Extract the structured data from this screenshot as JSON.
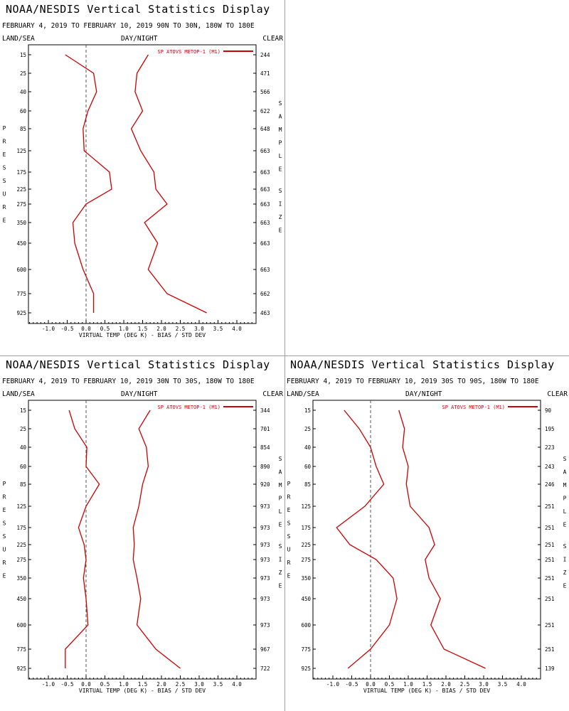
{
  "common": {
    "title": "NOAA/NESDIS Vertical Statistics Display",
    "header_left": "LAND/SEA",
    "header_mid": "DAY/NIGHT",
    "header_right": "CLEAR",
    "left_axis_label": "PRESSURE",
    "right_axis_label": "SAMPLE SIZE",
    "x_axis_label": "VIRTUAL TEMP (DEG K) - BIAS / STD DEV",
    "legend": "SP ATOVS METOP-1 (M1)",
    "x_ticks": [
      "-1.0",
      "-0.5",
      "0.0",
      "0.5",
      "1.0",
      "1.5",
      "2.0",
      "2.5",
      "3.0",
      "3.5",
      "4.0"
    ],
    "pressure_levels": [
      "15",
      "25",
      "40",
      "60",
      "85",
      "125",
      "175",
      "225",
      "275",
      "350",
      "450",
      "600",
      "775",
      "925"
    ],
    "colors": {
      "line": "#cc0000",
      "axis": "#000000",
      "zero_line": "#555555"
    }
  },
  "chart_data": [
    {
      "type": "line",
      "subtitle": "FEBRUARY 4, 2019 TO FEBRUARY 10, 2019 90N TO 30N, 180W TO 180E",
      "xlim": [
        -1.5,
        4.5
      ],
      "y": [
        "15",
        "25",
        "40",
        "60",
        "85",
        "125",
        "175",
        "225",
        "275",
        "350",
        "450",
        "600",
        "775",
        "925"
      ],
      "sample_size": [
        "244",
        "471",
        "566",
        "622",
        "648",
        "663",
        "663",
        "663",
        "663",
        "663",
        "663",
        "663",
        "662",
        "463"
      ],
      "series": [
        {
          "role": "bias",
          "values": [
            -0.55,
            0.2,
            0.28,
            0.05,
            -0.08,
            -0.05,
            0.62,
            0.68,
            0.0,
            -0.35,
            -0.3,
            -0.08,
            0.2,
            0.2
          ]
        },
        {
          "role": "std_dev",
          "values": [
            1.65,
            1.35,
            1.3,
            1.5,
            1.2,
            1.45,
            1.8,
            1.85,
            2.15,
            1.55,
            1.9,
            1.65,
            2.15,
            3.2
          ]
        }
      ]
    },
    {
      "type": "line",
      "subtitle": "FEBRUARY 4, 2019 TO FEBRUARY 10, 2019 30N TO 30S, 180W TO 180E",
      "xlim": [
        -1.5,
        4.5
      ],
      "y": [
        "15",
        "25",
        "40",
        "60",
        "85",
        "125",
        "175",
        "225",
        "275",
        "350",
        "450",
        "600",
        "775",
        "925"
      ],
      "sample_size": [
        "344",
        "701",
        "854",
        "890",
        "920",
        "973",
        "973",
        "973",
        "973",
        "973",
        "973",
        "973",
        "967",
        "722"
      ],
      "series": [
        {
          "role": "bias",
          "values": [
            -0.45,
            -0.3,
            0.02,
            0.0,
            0.35,
            0.0,
            -0.2,
            -0.05,
            0.0,
            -0.07,
            0.0,
            0.05,
            -0.55,
            -0.55
          ]
        },
        {
          "role": "std_dev",
          "values": [
            1.7,
            1.4,
            1.6,
            1.65,
            1.5,
            1.4,
            1.25,
            1.28,
            1.25,
            1.35,
            1.45,
            1.35,
            1.85,
            2.5
          ]
        }
      ]
    },
    {
      "type": "line",
      "subtitle": "FEBRUARY 4, 2019 TO FEBRUARY 10, 2019 30S TO 90S, 180W TO 180E",
      "xlim": [
        -1.5,
        4.5
      ],
      "y": [
        "15",
        "25",
        "40",
        "60",
        "85",
        "125",
        "175",
        "225",
        "275",
        "350",
        "450",
        "600",
        "775",
        "925"
      ],
      "sample_size": [
        "90",
        "195",
        "223",
        "243",
        "246",
        "251",
        "251",
        "251",
        "251",
        "251",
        "251",
        "251",
        "251",
        "139"
      ],
      "series": [
        {
          "role": "bias",
          "values": [
            -0.7,
            -0.3,
            0.0,
            0.15,
            0.35,
            -0.15,
            -0.9,
            -0.55,
            0.15,
            0.6,
            0.7,
            0.5,
            0.0,
            -0.6
          ]
        },
        {
          "role": "std_dev",
          "values": [
            0.75,
            0.9,
            0.85,
            1.0,
            0.95,
            1.05,
            1.55,
            1.7,
            1.45,
            1.55,
            1.85,
            1.6,
            1.95,
            3.05
          ]
        }
      ]
    }
  ]
}
